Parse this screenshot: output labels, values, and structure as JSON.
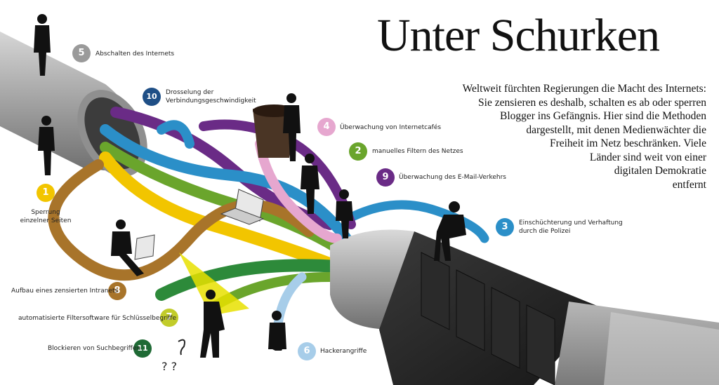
{
  "title": "Unter Schurken",
  "intro_lines": [
    "Weltweit fürchten Regierungen die Macht des Internets:",
    "Sie zensieren es deshalb, schalten es ab oder sperren",
    "Blogger ins Gefängnis. Hier sind die Methoden",
    "dargestellt, mit denen Medienwächter die",
    "Freiheit im Netz beschränken. Viele",
    "Länder sind weit von einer",
    "digitalen Demokratie",
    "entfernt"
  ],
  "methods": [
    {
      "num": "1",
      "text_lines": [
        "Sperrung",
        "einzelner Seiten"
      ],
      "color": "#f2c500"
    },
    {
      "num": "2",
      "text_lines": [
        "manuelles Filtern des Netzes"
      ],
      "color": "#6aa52c"
    },
    {
      "num": "3",
      "text_lines": [
        "Einschüchterung und Verhaftung",
        "durch die Polizei"
      ],
      "color": "#2b8fc8"
    },
    {
      "num": "4",
      "text_lines": [
        "Überwachung von Internetcafés"
      ],
      "color": "#e6a7cf"
    },
    {
      "num": "5",
      "text_lines": [
        "Abschalten des Internets"
      ],
      "color": "#9a9a9a"
    },
    {
      "num": "6",
      "text_lines": [
        "Hackerangriffe"
      ],
      "color": "#a7cde9"
    },
    {
      "num": "7",
      "text_lines": [
        "automatisierte Filtersoftware für Schlüsselbegriffe"
      ],
      "color": "#c2cc2a"
    },
    {
      "num": "8",
      "text_lines": [
        "Aufbau eines zensierten Intranets"
      ],
      "color": "#a8742a"
    },
    {
      "num": "9",
      "text_lines": [
        "Überwachung des E-Mail-Verkehrs"
      ],
      "color": "#6a2b86"
    },
    {
      "num": "10",
      "text_lines": [
        "Drosselung der",
        "Verbindungsgeschwindigkeit"
      ],
      "color": "#1f4f86"
    },
    {
      "num": "11",
      "text_lines": [
        "Blockieren von Suchbegriffen"
      ],
      "color": "#1f6a35"
    }
  ]
}
